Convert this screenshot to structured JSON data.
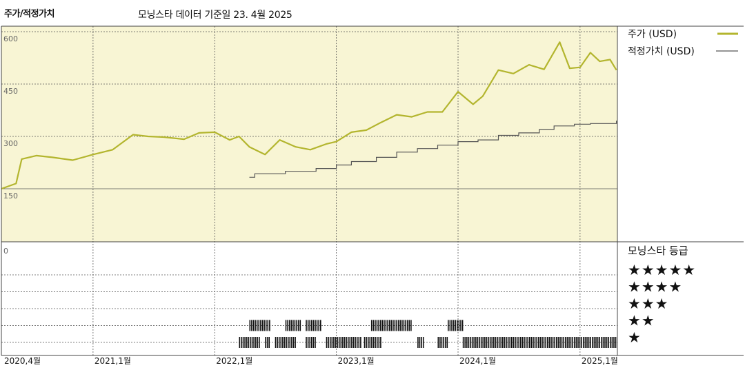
{
  "header": {
    "title": "주가/적정가치",
    "subtitle": "모닝스타 데이터 기준일 23. 4월 2025"
  },
  "colors": {
    "plot_bg": "#f8f5d4",
    "price_line": "#b3b52e",
    "fair_value_line": "#555555",
    "rating_bar": "#111111",
    "grid": "#555555"
  },
  "chart_data": {
    "type": "line",
    "x_ticks": [
      "2020,4월",
      "2021,1월",
      "2022,1월",
      "2023,1월",
      "2024,1월",
      "2025,1월"
    ],
    "x_tick_dates": [
      "2020-04-01",
      "2021-01-01",
      "2022-01-01",
      "2023-01-01",
      "2024-01-01",
      "2025-01-01"
    ],
    "x_range": [
      "2020-04-01",
      "2025-04-23"
    ],
    "y_ticks": [
      "600",
      "450",
      "300",
      "150"
    ],
    "y_tick_values": [
      600,
      450,
      300,
      150
    ],
    "y_range": [
      0,
      600
    ],
    "grid": true,
    "legend_position": "right",
    "series": [
      {
        "name": "주가 (USD)",
        "x": [
          "2020-04-01",
          "2020-05-15",
          "2020-06-01",
          "2020-07-15",
          "2020-09-01",
          "2020-11-01",
          "2021-01-01",
          "2021-03-01",
          "2021-05-01",
          "2021-06-15",
          "2021-08-01",
          "2021-10-01",
          "2021-11-15",
          "2022-01-01",
          "2022-02-15",
          "2022-03-15",
          "2022-04-15",
          "2022-06-01",
          "2022-07-15",
          "2022-09-01",
          "2022-10-15",
          "2022-12-01",
          "2023-01-01",
          "2023-02-15",
          "2023-04-01",
          "2023-05-15",
          "2023-07-01",
          "2023-08-15",
          "2023-10-01",
          "2023-11-15",
          "2024-01-01",
          "2024-02-15",
          "2024-03-15",
          "2024-05-01",
          "2024-06-15",
          "2024-08-01",
          "2024-09-15",
          "2024-11-01",
          "2024-12-01",
          "2025-01-01",
          "2025-02-01",
          "2025-03-01",
          "2025-04-01",
          "2025-04-20"
        ],
        "values": [
          150,
          165,
          235,
          245,
          240,
          232,
          248,
          262,
          305,
          300,
          298,
          292,
          310,
          312,
          290,
          300,
          270,
          248,
          290,
          270,
          262,
          278,
          285,
          312,
          318,
          340,
          362,
          356,
          370,
          370,
          428,
          392,
          415,
          490,
          480,
          505,
          492,
          570,
          495,
          498,
          540,
          515,
          520,
          490
        ]
      },
      {
        "name": "적정가치 (USD)",
        "x": [
          "2022-04-15",
          "2022-05-01",
          "2022-08-01",
          "2022-11-01",
          "2023-01-01",
          "2023-02-15",
          "2023-05-01",
          "2023-07-01",
          "2023-09-01",
          "2023-11-01",
          "2024-01-01",
          "2024-03-01",
          "2024-05-01",
          "2024-07-01",
          "2024-09-01",
          "2024-10-15",
          "2024-12-15",
          "2025-02-01",
          "2025-04-20"
        ],
        "values": [
          183,
          193,
          200,
          208,
          218,
          228,
          240,
          255,
          265,
          275,
          285,
          290,
          303,
          310,
          320,
          330,
          335,
          337,
          345
        ]
      }
    ]
  },
  "rating": {
    "title": "모닝스타 등급",
    "zero_label": "0",
    "levels": [
      "★★★★★",
      "★★★★",
      "★★★",
      "★★",
      "★"
    ],
    "periods": [
      {
        "level": 2,
        "start": "2022-04-15",
        "end": "2022-06-15"
      },
      {
        "level": 2,
        "start": "2022-08-01",
        "end": "2022-09-15"
      },
      {
        "level": 2,
        "start": "2022-10-01",
        "end": "2022-11-15"
      },
      {
        "level": 2,
        "start": "2023-04-15",
        "end": "2023-08-15"
      },
      {
        "level": 2,
        "start": "2023-12-01",
        "end": "2024-01-15"
      },
      {
        "level": 1,
        "start": "2022-03-15",
        "end": "2022-05-15"
      },
      {
        "level": 1,
        "start": "2022-06-01",
        "end": "2022-06-15"
      },
      {
        "level": 1,
        "start": "2022-07-01",
        "end": "2022-09-01"
      },
      {
        "level": 1,
        "start": "2022-10-01",
        "end": "2022-10-31"
      },
      {
        "level": 1,
        "start": "2022-12-01",
        "end": "2023-03-15"
      },
      {
        "level": 1,
        "start": "2023-03-25",
        "end": "2023-05-15"
      },
      {
        "level": 1,
        "start": "2023-09-01",
        "end": "2023-09-20"
      },
      {
        "level": 1,
        "start": "2023-11-01",
        "end": "2023-12-01"
      },
      {
        "level": 1,
        "start": "2024-01-15",
        "end": "2025-04-20"
      }
    ]
  }
}
